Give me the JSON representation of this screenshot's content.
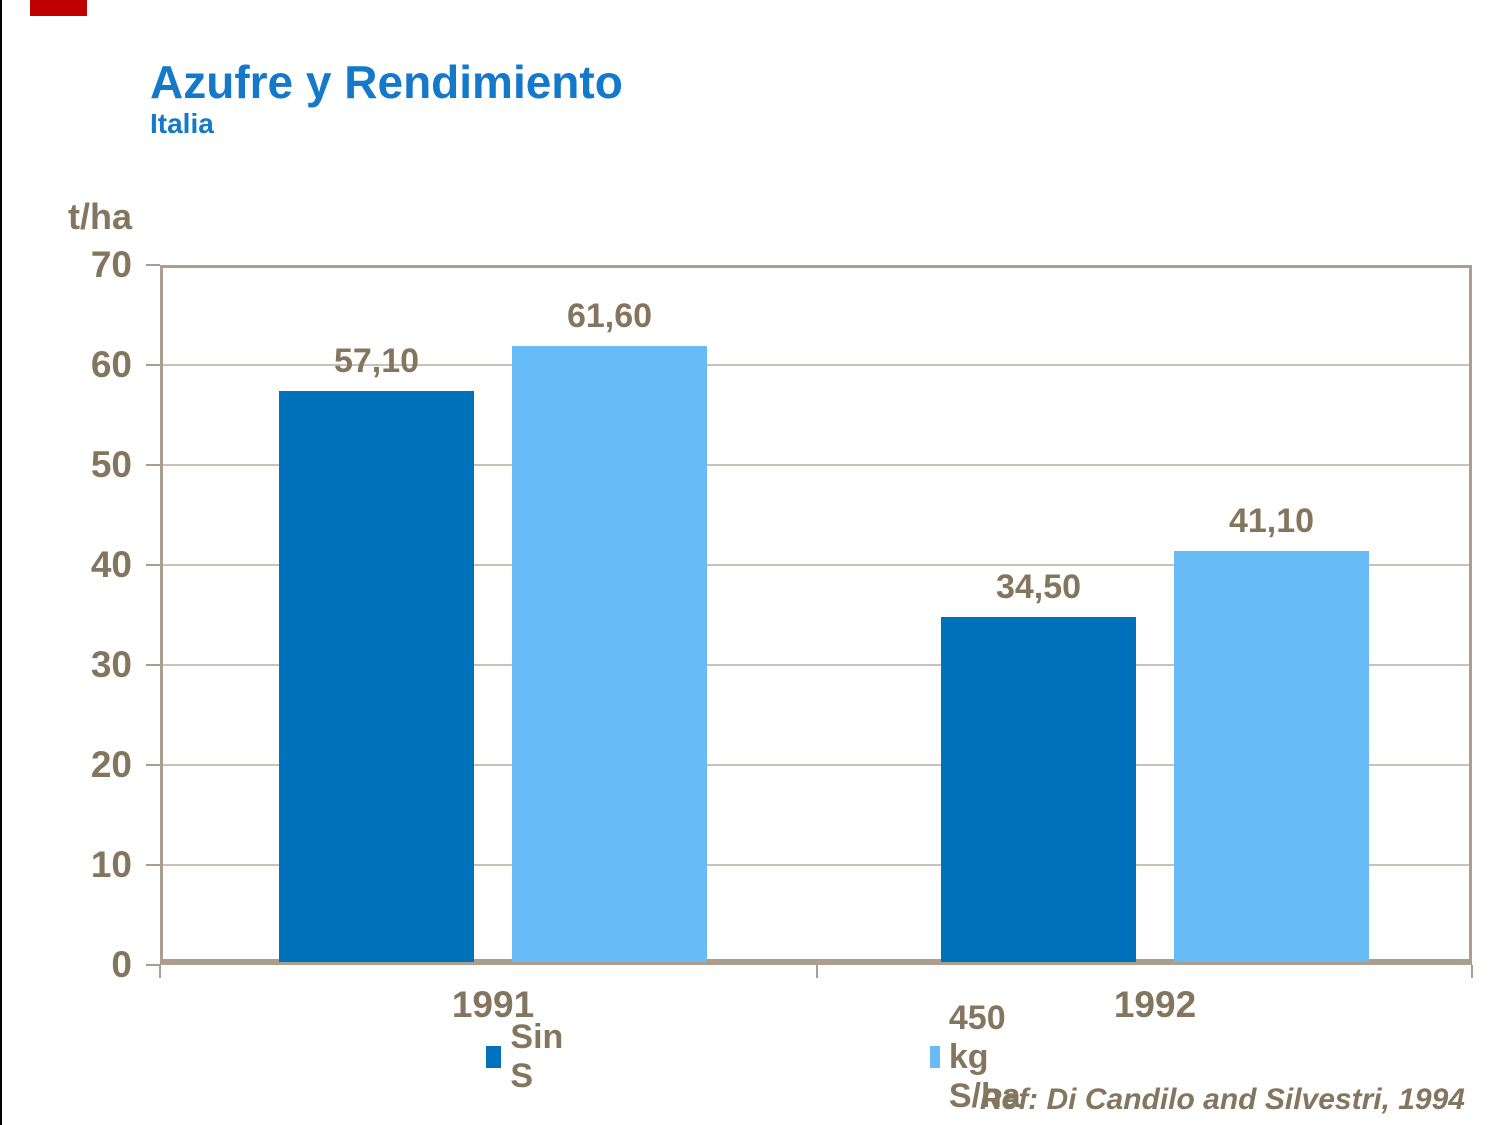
{
  "slide": {
    "title": "Azufre y Rendimiento",
    "subtitle": "Italia",
    "reference": "Ref: Di Candilo and Silvestri, 1994",
    "accent_color": "#C00000",
    "title_color": "#1379C8"
  },
  "chart_data": {
    "type": "bar",
    "title": "Azufre y Rendimiento",
    "subtitle": "Italia",
    "unit_label": "t/ha",
    "categories": [
      "1991",
      "1992"
    ],
    "series": [
      {
        "name": "Sin S",
        "color": "#0072BC",
        "values": [
          57.1,
          34.5
        ],
        "value_labels": [
          "57,10",
          "34,50"
        ]
      },
      {
        "name": "450 kg S/ha",
        "color": "#67BBF7",
        "values": [
          61.6,
          41.1
        ],
        "value_labels": [
          "61,60",
          "41,10"
        ]
      }
    ],
    "ylim": [
      0,
      70
    ],
    "ytick_step": 10,
    "yticks": [
      0,
      10,
      20,
      30,
      40,
      50,
      60,
      70
    ],
    "grid": true,
    "legend_position": "bottom",
    "text_color": "#84755F",
    "axis_color": "#AB9E8E",
    "grid_color": "#CBC0B2"
  }
}
